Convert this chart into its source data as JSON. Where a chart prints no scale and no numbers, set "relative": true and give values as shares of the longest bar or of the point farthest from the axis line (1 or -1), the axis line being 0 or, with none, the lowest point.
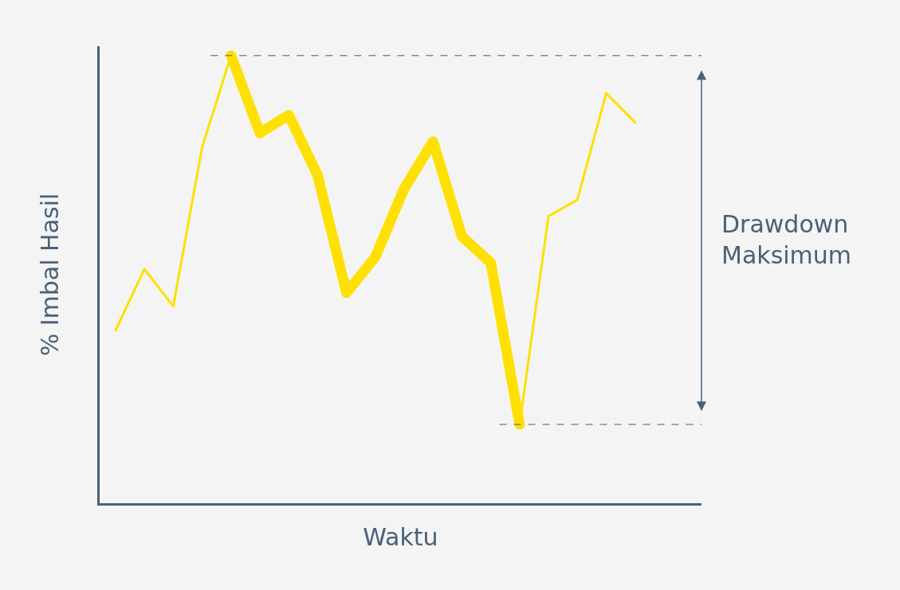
{
  "chart_data": {
    "type": "line",
    "relative": true,
    "xlabel": "Waktu",
    "ylabel": "% Imbal Hasil",
    "categories": [
      null,
      null,
      null,
      null,
      null,
      null,
      null,
      null,
      null,
      null,
      null,
      null,
      null,
      null,
      null,
      null,
      null,
      null,
      null
    ],
    "series": [
      {
        "color": "#ffe000",
        "values": [
          0.386,
          0.523,
          0.44,
          0.795,
          1,
          0.827,
          0.867,
          0.733,
          0.47,
          0.55,
          0.703,
          0.808,
          0.596,
          0.537,
          0.176,
          0.641,
          0.678,
          0.916,
          0.851
        ]
      },
      {
        "color": "#ffe000",
        "values": [
          null,
          null,
          null,
          null,
          1,
          0.827,
          0.867,
          0.733,
          0.47,
          0.55,
          0.703,
          0.808,
          0.596,
          0.537,
          0.176,
          null,
          null,
          null,
          null
        ]
      }
    ],
    "ref_lines": [
      {
        "axis": "y",
        "value": 1,
        "color": "#44596e",
        "line_style": "dashed"
      },
      {
        "axis": "y",
        "value": 0.176,
        "color": "#44596e",
        "line_style": "dashed"
      }
    ],
    "annotations": [
      "Drawdown Maksimum"
    ],
    "marker": "none",
    "line_style": "solid"
  }
}
